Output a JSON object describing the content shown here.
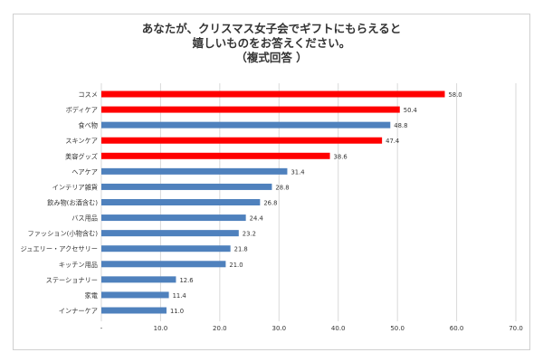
{
  "chart_data": {
    "type": "bar",
    "orientation": "horizontal",
    "title_lines": [
      "あなたが、クリスマス女子会でギフトにもらえると",
      "嬉しいものをお答えください。",
      "（複式回答 ）"
    ],
    "categories": [
      "コスメ",
      "ボディケア",
      "食べ物",
      "スキンケア",
      "美容グッズ",
      "ヘアケア",
      "インテリア雑貨",
      "飲み物(お酒含む)",
      "バス用品",
      "ファッション(小物含む)",
      "ジュエリー・アクセサリー",
      "キッチン用品",
      "ステーショナリー",
      "家電",
      "インナーケア"
    ],
    "values": [
      58.0,
      50.4,
      48.8,
      47.4,
      38.6,
      31.4,
      28.8,
      26.8,
      24.4,
      23.2,
      21.8,
      21.0,
      12.6,
      11.4,
      11.0
    ],
    "value_labels": [
      "58.0",
      "50.4",
      "48.8",
      "47.4",
      "38.6",
      "31.4",
      "28.8",
      "26.8",
      "24.4",
      "23.2",
      "21.8",
      "21.0",
      "12.6",
      "11.4",
      "11.0"
    ],
    "highlighted": [
      true,
      true,
      false,
      true,
      true,
      false,
      false,
      false,
      false,
      false,
      false,
      false,
      false,
      false,
      false
    ],
    "colors": {
      "highlight": "#ff0000",
      "normal": "#4f81bd",
      "grid": "#d9d9d9",
      "text": "#333333"
    },
    "x_ticks": [
      "-",
      "10.0",
      "20.0",
      "30.0",
      "40.0",
      "50.0",
      "60.0",
      "70.0"
    ],
    "xlim": [
      0,
      70
    ],
    "grid": true,
    "legend": "none"
  }
}
